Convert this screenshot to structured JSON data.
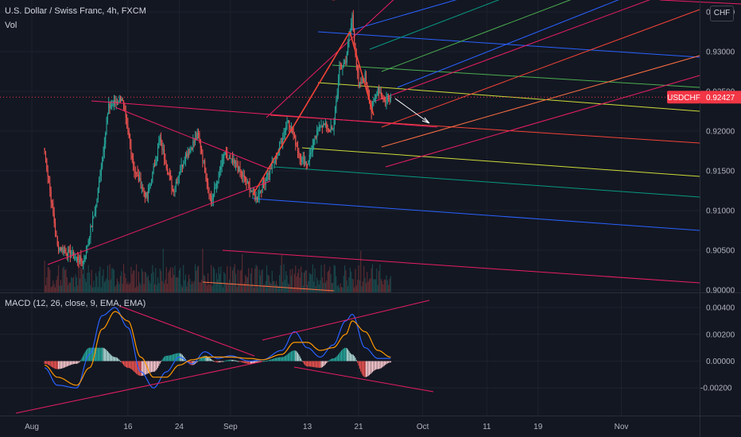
{
  "header": {
    "symbol_title": "U.S. Dollar / Swiss Franc, 4h, FXCM",
    "volume_label": "Vol",
    "macd_label": "MACD (12, 26, close, 9, EMA, EMA)",
    "currency_button": "CHF"
  },
  "price_axis": {
    "ticks": [
      "0.93500",
      "0.93000",
      "0.92500",
      "0.92000",
      "0.91500",
      "0.91000",
      "0.90500",
      "0.90000"
    ],
    "current_symbol": "USDCHF",
    "current_price": "0.92427"
  },
  "macd_axis": {
    "ticks": [
      "0.00400",
      "0.00200",
      "0.00000",
      "-0.00200"
    ]
  },
  "time_axis": {
    "ticks": [
      "Aug",
      "16",
      "24",
      "Sep",
      "13",
      "21",
      "Oct",
      "11",
      "19",
      "Nov"
    ]
  },
  "colors": {
    "up": "#26a69a",
    "down": "#ef5350",
    "price_label_bg": "#f23645",
    "macd_line": "#2962ff",
    "signal_line": "#ff9800",
    "trend_lines": "#e91e63",
    "fork_red": "#f44336",
    "fork_green": "#4caf50",
    "fork_teal": "#089981",
    "fork_blue": "#2962ff",
    "fork_yellow": "#cddc39",
    "fork_pink": "#e91e63",
    "fork_orange": "#ff7043"
  },
  "chart_data": {
    "type": "candlestick",
    "symbol": "USDCHF",
    "timeframe": "4h",
    "price_range": [
      0.8995,
      0.9365
    ],
    "macd_range": [
      -0.0027,
      0.0043
    ],
    "last_price": 0.92427,
    "anchors": [
      {
        "date": "Aug 3",
        "price": 0.9175
      },
      {
        "date": "Aug 5",
        "price": 0.9055
      },
      {
        "date": "Aug 9",
        "price": 0.9035
      },
      {
        "date": "Aug 11",
        "price": 0.9105
      },
      {
        "date": "Aug 13",
        "price": 0.923
      },
      {
        "date": "Aug 15",
        "price": 0.9243
      },
      {
        "date": "Aug 17",
        "price": 0.9152
      },
      {
        "date": "Aug 19",
        "price": 0.9115
      },
      {
        "date": "Aug 21",
        "price": 0.919
      },
      {
        "date": "Aug 23",
        "price": 0.9125
      },
      {
        "date": "Aug 25",
        "price": 0.917
      },
      {
        "date": "Aug 27",
        "price": 0.9195
      },
      {
        "date": "Aug 29",
        "price": 0.911
      },
      {
        "date": "Aug 31",
        "price": 0.917
      },
      {
        "date": "Sep 2",
        "price": 0.9155
      },
      {
        "date": "Sep 5",
        "price": 0.9115
      },
      {
        "date": "Sep 8",
        "price": 0.9165
      },
      {
        "date": "Sep 10",
        "price": 0.9215
      },
      {
        "date": "Sep 12",
        "price": 0.9165
      },
      {
        "date": "Sep 13",
        "price": 0.916
      },
      {
        "date": "Sep 15",
        "price": 0.921
      },
      {
        "date": "Sep 17",
        "price": 0.92
      },
      {
        "date": "Sep 18",
        "price": 0.9275
      },
      {
        "date": "Sep 19",
        "price": 0.929
      },
      {
        "date": "Sep 20",
        "price": 0.9345
      },
      {
        "date": "Sep 21",
        "price": 0.9255
      },
      {
        "date": "Sep 22",
        "price": 0.927
      },
      {
        "date": "Sep 23",
        "price": 0.9225
      },
      {
        "date": "Sep 24",
        "price": 0.9255
      },
      {
        "date": "Sep 25",
        "price": 0.9238
      },
      {
        "date": "Sep 26",
        "price": 0.92427
      }
    ],
    "macd_anchors": [
      {
        "date": "Aug 3",
        "macd": -0.0005,
        "signal": -0.0003
      },
      {
        "date": "Aug 5",
        "macd": -0.0018,
        "signal": -0.0012
      },
      {
        "date": "Aug 8",
        "macd": -0.002,
        "signal": -0.0018
      },
      {
        "date": "Aug 10",
        "macd": 0.0005,
        "signal": -0.0005
      },
      {
        "date": "Aug 12",
        "macd": 0.0034,
        "signal": 0.0024
      },
      {
        "date": "Aug 14",
        "macd": 0.004,
        "signal": 0.0037
      },
      {
        "date": "Aug 16",
        "macd": 0.0025,
        "signal": 0.003
      },
      {
        "date": "Aug 18",
        "macd": -0.0008,
        "signal": 0.0003
      },
      {
        "date": "Aug 20",
        "macd": -0.002,
        "signal": -0.0012
      },
      {
        "date": "Aug 22",
        "macd": -0.0008,
        "signal": -0.0012
      },
      {
        "date": "Aug 24",
        "macd": 0.0003,
        "signal": -0.0003
      },
      {
        "date": "Aug 26",
        "macd": -0.0002,
        "signal": 0.0001
      },
      {
        "date": "Aug 28",
        "macd": 0.0007,
        "signal": 0.0003
      },
      {
        "date": "Aug 30",
        "macd": 0.0002,
        "signal": 0.0003
      },
      {
        "date": "Sep 1",
        "macd": 0.0004,
        "signal": 0.0003
      },
      {
        "date": "Sep 4",
        "macd": 0.0,
        "signal": 0.0002
      },
      {
        "date": "Sep 6",
        "macd": 0.0001,
        "signal": 0.0001
      },
      {
        "date": "Sep 9",
        "macd": 0.0008,
        "signal": 0.0005
      },
      {
        "date": "Sep 11",
        "macd": 0.0022,
        "signal": 0.0014
      },
      {
        "date": "Sep 13",
        "macd": 0.001,
        "signal": 0.0014
      },
      {
        "date": "Sep 15",
        "macd": 0.0003,
        "signal": 0.0008
      },
      {
        "date": "Sep 17",
        "macd": 0.0012,
        "signal": 0.001
      },
      {
        "date": "Sep 19",
        "macd": 0.003,
        "signal": 0.002
      },
      {
        "date": "Sep 20",
        "macd": 0.0035,
        "signal": 0.003
      },
      {
        "date": "Sep 22",
        "macd": 0.001,
        "signal": 0.0022
      },
      {
        "date": "Sep 24",
        "macd": 0.0002,
        "signal": 0.0008
      },
      {
        "date": "Sep 26",
        "macd": 0.0002,
        "signal": 0.0003
      }
    ]
  }
}
